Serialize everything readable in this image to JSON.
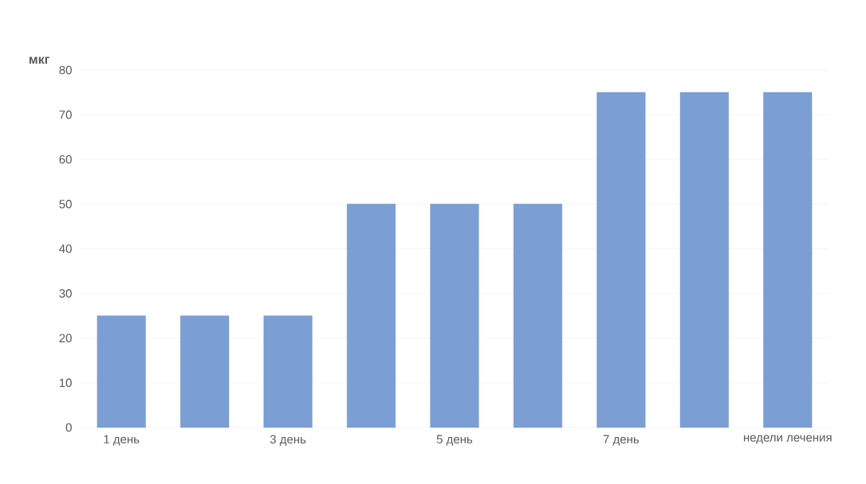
{
  "chart_data": {
    "type": "bar",
    "ylabel": "мкг",
    "categories": [
      "1 день",
      null,
      "3 день",
      null,
      "5 день",
      null,
      "7 день",
      null,
      "недели лечения"
    ],
    "values": [
      25,
      25,
      25,
      50,
      50,
      50,
      75,
      75,
      75
    ],
    "color": "#7b9fd4",
    "ylim": [
      0,
      80
    ],
    "yticks": [
      0,
      10,
      20,
      30,
      40,
      50,
      60,
      70,
      80
    ],
    "grid": "y"
  }
}
